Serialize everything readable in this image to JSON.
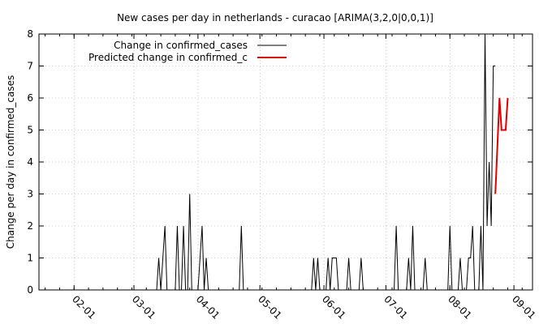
{
  "chart_data": {
    "type": "line",
    "title": "New cases per day in netherlands - curacao [ARIMA(3,2,0|0,0,1)]",
    "xlabel": "",
    "ylabel": "Change per day in confirmed_cases",
    "x_axis": {
      "type": "date",
      "range": [
        "2020-01-15",
        "2020-09-10"
      ],
      "ticks": [
        {
          "date": "2020-02-01",
          "label": "02-01"
        },
        {
          "date": "2020-03-01",
          "label": "03-01"
        },
        {
          "date": "2020-04-01",
          "label": "04-01"
        },
        {
          "date": "2020-05-01",
          "label": "05-01"
        },
        {
          "date": "2020-06-01",
          "label": "06-01"
        },
        {
          "date": "2020-07-01",
          "label": "07-01"
        },
        {
          "date": "2020-08-01",
          "label": "08-01"
        },
        {
          "date": "2020-09-01",
          "label": "09-01"
        }
      ],
      "tick_label_rotation": "-45deg"
    },
    "y_axis": {
      "range": [
        0,
        8
      ],
      "ticks": [
        "0",
        "1",
        "2",
        "3",
        "4",
        "5",
        "6",
        "7",
        "8"
      ]
    },
    "grid": true,
    "legend": {
      "position": "top-left",
      "frame": false
    },
    "series": [
      {
        "name": "Change in confirmed_cases",
        "color": "#000000",
        "points": [
          [
            "2020-02-27",
            0
          ],
          [
            "2020-03-12",
            0
          ],
          [
            "2020-03-13",
            1
          ],
          [
            "2020-03-14",
            0
          ],
          [
            "2020-03-16",
            2
          ],
          [
            "2020-03-17",
            0
          ],
          [
            "2020-03-21",
            0
          ],
          [
            "2020-03-22",
            2
          ],
          [
            "2020-03-23",
            0
          ],
          [
            "2020-03-24",
            0
          ],
          [
            "2020-03-25",
            2
          ],
          [
            "2020-03-26",
            0
          ],
          [
            "2020-03-27",
            0
          ],
          [
            "2020-03-28",
            3
          ],
          [
            "2020-03-29",
            0
          ],
          [
            "2020-04-01",
            0
          ],
          [
            "2020-04-03",
            2
          ],
          [
            "2020-04-04",
            0
          ],
          [
            "2020-04-05",
            1
          ],
          [
            "2020-04-06",
            0
          ],
          [
            "2020-04-21",
            0
          ],
          [
            "2020-04-22",
            2
          ],
          [
            "2020-04-23",
            0
          ],
          [
            "2020-05-26",
            0
          ],
          [
            "2020-05-27",
            1
          ],
          [
            "2020-05-28",
            0
          ],
          [
            "2020-05-29",
            1
          ],
          [
            "2020-05-30",
            0
          ],
          [
            "2020-06-02",
            0
          ],
          [
            "2020-06-03",
            1
          ],
          [
            "2020-06-04",
            0
          ],
          [
            "2020-06-05",
            1
          ],
          [
            "2020-06-07",
            1
          ],
          [
            "2020-06-08",
            0
          ],
          [
            "2020-06-12",
            0
          ],
          [
            "2020-06-13",
            1
          ],
          [
            "2020-06-14",
            0
          ],
          [
            "2020-06-18",
            0
          ],
          [
            "2020-06-19",
            1
          ],
          [
            "2020-06-20",
            0
          ],
          [
            "2020-07-05",
            0
          ],
          [
            "2020-07-06",
            2
          ],
          [
            "2020-07-07",
            0
          ],
          [
            "2020-07-11",
            0
          ],
          [
            "2020-07-12",
            1
          ],
          [
            "2020-07-13",
            0
          ],
          [
            "2020-07-14",
            2
          ],
          [
            "2020-07-15",
            0
          ],
          [
            "2020-07-19",
            0
          ],
          [
            "2020-07-20",
            1
          ],
          [
            "2020-07-21",
            0
          ],
          [
            "2020-07-31",
            0
          ],
          [
            "2020-08-01",
            2
          ],
          [
            "2020-08-02",
            0
          ],
          [
            "2020-08-05",
            0
          ],
          [
            "2020-08-06",
            1
          ],
          [
            "2020-08-07",
            0
          ],
          [
            "2020-08-09",
            0
          ],
          [
            "2020-08-10",
            1
          ],
          [
            "2020-08-11",
            1
          ],
          [
            "2020-08-12",
            2
          ],
          [
            "2020-08-13",
            0
          ],
          [
            "2020-08-15",
            0
          ],
          [
            "2020-08-16",
            2
          ],
          [
            "2020-08-17",
            0
          ],
          [
            "2020-08-18",
            8
          ],
          [
            "2020-08-19",
            2
          ],
          [
            "2020-08-20",
            4
          ],
          [
            "2020-08-21",
            2
          ],
          [
            "2020-08-22",
            7
          ],
          [
            "2020-08-23",
            7
          ]
        ]
      },
      {
        "name": "Predicted change in confirmed_c",
        "color": "#e00000",
        "points": [
          [
            "2020-08-23",
            3
          ],
          [
            "2020-08-25",
            6
          ],
          [
            "2020-08-26",
            5
          ],
          [
            "2020-08-27",
            5
          ],
          [
            "2020-08-28",
            5
          ],
          [
            "2020-08-29",
            6
          ]
        ]
      }
    ]
  }
}
